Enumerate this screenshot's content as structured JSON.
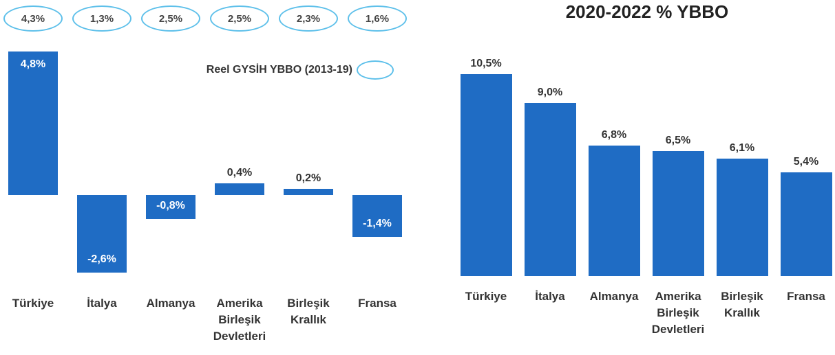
{
  "chart_data": [
    {
      "type": "bar",
      "categories": [
        "Türkiye",
        "İtalya",
        "Almanya",
        "Amerika Birleşik Devletleri",
        "Birleşik Krallık",
        "Fransa"
      ],
      "series": [
        {
          "color": "#1f6cc4",
          "values": [
            4.8,
            -2.6,
            -0.8,
            0.4,
            0.2,
            -1.4
          ],
          "value_labels": [
            "4,8%",
            "-2,6%",
            "-0,8%",
            "0,4%",
            "0,2%",
            "-1,4%"
          ]
        },
        {
          "name": "Reel GYSİH YBBO (2013-19)",
          "color": "#5ec0ea",
          "values": [
            4.3,
            1.3,
            2.5,
            2.5,
            2.3,
            1.6
          ],
          "value_labels": [
            "4,3%",
            "1,3%",
            "2,5%",
            "2,5%",
            "2,3%",
            "1,6%"
          ]
        }
      ]
    },
    {
      "type": "bar",
      "title": "2020-2022 % YBBO",
      "categories": [
        "Türkiye",
        "İtalya",
        "Almanya",
        "Amerika Birleşik Devletleri",
        "Birleşik Krallık",
        "Fransa"
      ],
      "color": "#1f6cc4",
      "values": [
        10.5,
        9.0,
        6.8,
        6.5,
        6.1,
        5.4
      ],
      "value_labels": [
        "10,5%",
        "9,0%",
        "6,8%",
        "6,5%",
        "6,1%",
        "5,4%"
      ]
    }
  ]
}
